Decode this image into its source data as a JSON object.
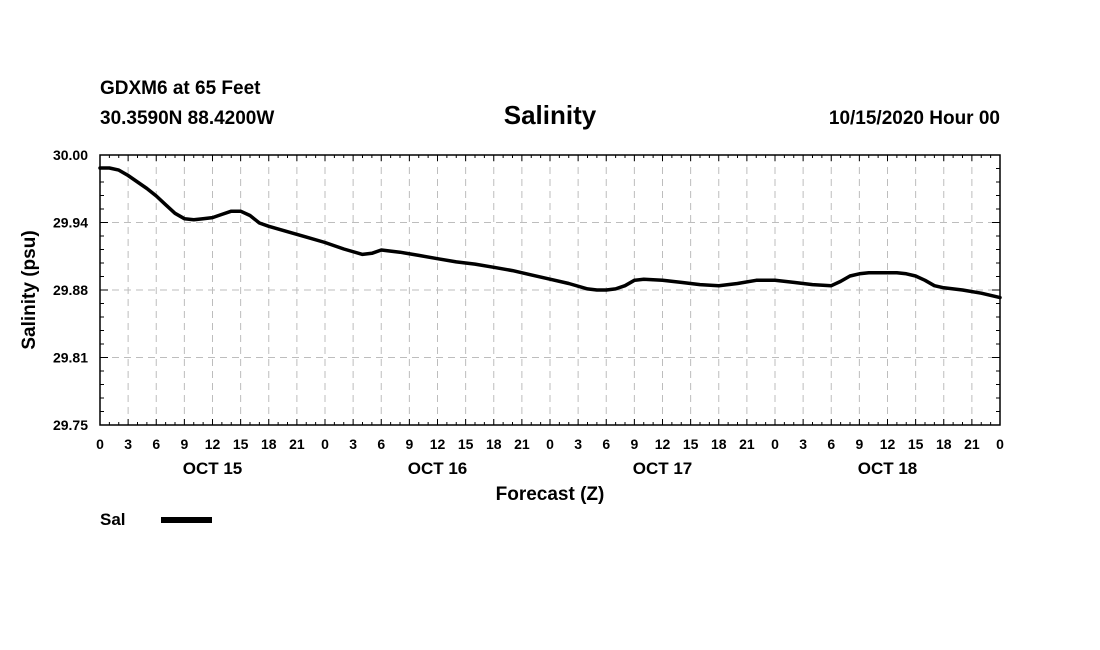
{
  "chart_data": {
    "type": "line",
    "station": "GDXM6 at 65 Feet",
    "location": "30.3590N 88.4200W",
    "title": "Salinity",
    "run": "10/15/2020 Hour 00",
    "xlabel": "Forecast (Z)",
    "ylabel": "Salinity (psu)",
    "ylim": [
      29.75,
      30.0
    ],
    "yticks": [
      {
        "value": 29.75,
        "label": "29.75"
      },
      {
        "value": 29.8125,
        "label": "29.81"
      },
      {
        "value": 29.875,
        "label": "29.88"
      },
      {
        "value": 29.9375,
        "label": "29.94"
      },
      {
        "value": 30.0,
        "label": "30.00"
      }
    ],
    "xlim": [
      0,
      96
    ],
    "xticks": [
      "0",
      "3",
      "6",
      "9",
      "12",
      "15",
      "18",
      "21",
      "0",
      "3",
      "6",
      "9",
      "12",
      "15",
      "18",
      "21",
      "0",
      "3",
      "6",
      "9",
      "12",
      "15",
      "18",
      "21",
      "0",
      "3",
      "6",
      "9",
      "12",
      "15",
      "18",
      "21",
      "0"
    ],
    "day_labels": [
      {
        "hour": 12,
        "label": "OCT 15"
      },
      {
        "hour": 36,
        "label": "OCT 16"
      },
      {
        "hour": 60,
        "label": "OCT 17"
      },
      {
        "hour": 84,
        "label": "OCT 18"
      }
    ],
    "grid": true,
    "legend": "bottom-left",
    "series": [
      {
        "name": "Sal",
        "x": [
          0,
          1,
          2,
          3,
          4,
          5,
          6,
          7,
          8,
          9,
          10,
          11,
          12,
          13,
          14,
          15,
          16,
          17,
          18,
          20,
          22,
          24,
          26,
          28,
          29,
          30,
          31,
          32,
          34,
          36,
          38,
          40,
          42,
          44,
          46,
          48,
          50,
          52,
          53,
          54,
          55,
          56,
          57,
          58,
          60,
          62,
          64,
          66,
          68,
          70,
          72,
          74,
          76,
          78,
          79,
          80,
          81,
          82,
          83,
          84,
          85,
          86,
          87,
          88,
          89,
          90,
          92,
          94,
          96
        ],
        "values": [
          29.988,
          29.988,
          29.986,
          29.981,
          29.975,
          29.969,
          29.962,
          29.954,
          29.946,
          29.941,
          29.94,
          29.941,
          29.942,
          29.945,
          29.948,
          29.948,
          29.944,
          29.937,
          29.934,
          29.929,
          29.924,
          29.919,
          29.913,
          29.908,
          29.909,
          29.912,
          29.911,
          29.91,
          29.907,
          29.904,
          29.901,
          29.899,
          29.896,
          29.893,
          29.889,
          29.885,
          29.881,
          29.876,
          29.875,
          29.875,
          29.876,
          29.879,
          29.884,
          29.885,
          29.884,
          29.882,
          29.88,
          29.879,
          29.881,
          29.884,
          29.884,
          29.882,
          29.88,
          29.879,
          29.883,
          29.888,
          29.89,
          29.891,
          29.891,
          29.891,
          29.891,
          29.89,
          29.888,
          29.884,
          29.879,
          29.877,
          29.875,
          29.872,
          29.868
        ]
      }
    ]
  }
}
